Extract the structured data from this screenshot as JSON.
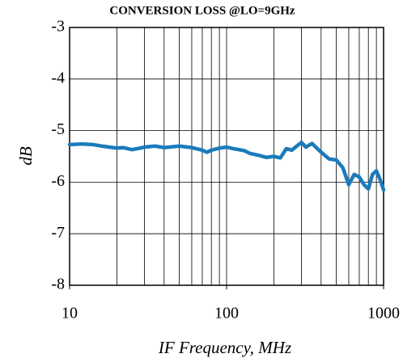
{
  "chart_data": {
    "type": "line",
    "title": "CONVERSION  LOSS @LO=9GHz",
    "xlabel": "IF Frequency, MHz",
    "ylabel": "dB",
    "xscale": "log",
    "xlim": [
      10,
      1000
    ],
    "xticks": [
      10,
      100,
      1000
    ],
    "xgrid": [
      10,
      20,
      30,
      40,
      50,
      60,
      70,
      80,
      90,
      100,
      200,
      300,
      400,
      500,
      600,
      700,
      800,
      900,
      1000
    ],
    "ylim": [
      -8,
      -3
    ],
    "yticks": [
      -8,
      -7,
      -6,
      -5,
      -4,
      -3
    ],
    "grid": true,
    "series": [
      {
        "name": "Conversion loss",
        "color": "#1b7bbb",
        "x": [
          10,
          12,
          14,
          16,
          20,
          22,
          25,
          28,
          30,
          35,
          40,
          50,
          60,
          70,
          75,
          80,
          90,
          100,
          110,
          120,
          130,
          140,
          160,
          180,
          200,
          220,
          240,
          260,
          280,
          300,
          320,
          350,
          400,
          450,
          500,
          550,
          600,
          650,
          700,
          750,
          800,
          850,
          900,
          950,
          1000
        ],
        "values": [
          -5.27,
          -5.26,
          -5.27,
          -5.3,
          -5.34,
          -5.33,
          -5.37,
          -5.34,
          -5.32,
          -5.3,
          -5.33,
          -5.3,
          -5.33,
          -5.38,
          -5.42,
          -5.38,
          -5.34,
          -5.32,
          -5.35,
          -5.37,
          -5.39,
          -5.44,
          -5.48,
          -5.52,
          -5.5,
          -5.53,
          -5.35,
          -5.38,
          -5.3,
          -5.23,
          -5.32,
          -5.25,
          -5.42,
          -5.55,
          -5.57,
          -5.72,
          -6.05,
          -5.85,
          -5.9,
          -6.05,
          -6.13,
          -5.85,
          -5.78,
          -5.95,
          -6.15
        ]
      }
    ]
  }
}
